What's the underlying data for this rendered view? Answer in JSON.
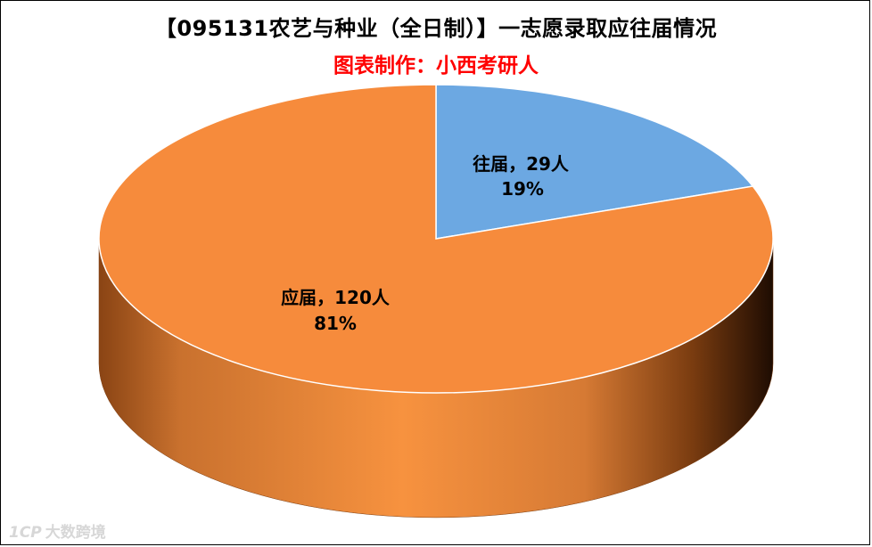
{
  "chart_data": {
    "type": "pie",
    "title": "【095131农艺与种业（全日制）】一志愿录取应往届情况",
    "subtitle": "图表制作：小西考研人",
    "slices": [
      {
        "name": "往届",
        "value": 29,
        "unit": "人",
        "percent": "19%",
        "color": "#6ca8e2"
      },
      {
        "name": "应届",
        "value": 120,
        "unit": "人",
        "percent": "81%",
        "color": "#f68b3c"
      }
    ],
    "labels": [
      {
        "line1": "往届，29人",
        "line2": "19%"
      },
      {
        "line1": "应届，120人",
        "line2": "81%"
      }
    ],
    "legend": "none",
    "style": "3d"
  },
  "watermark": {
    "logo": "1CP",
    "text": "大数跨境"
  }
}
